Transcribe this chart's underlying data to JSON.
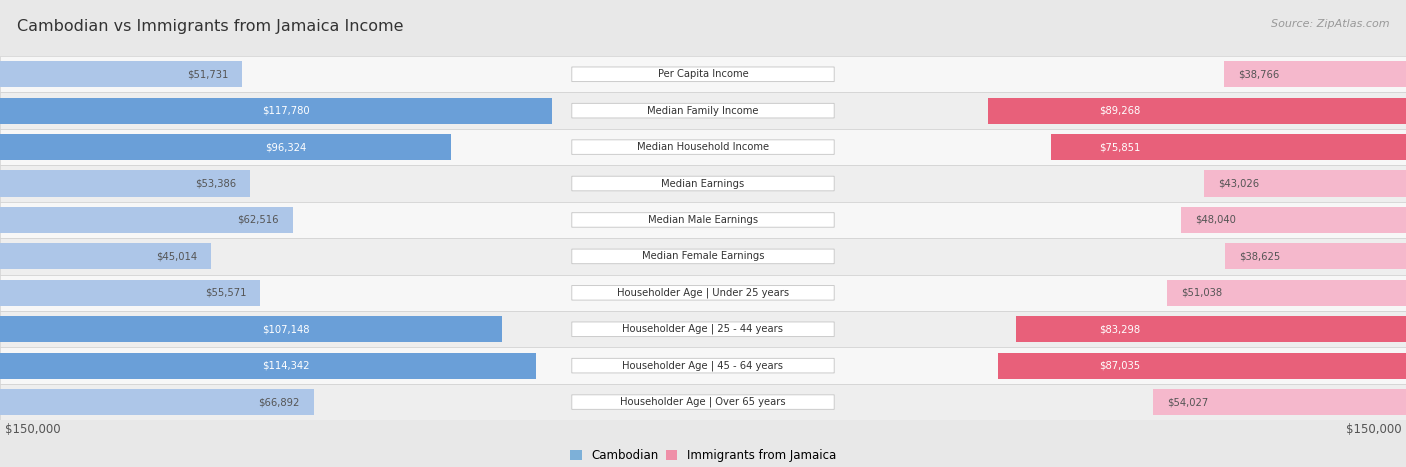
{
  "title": "Cambodian vs Immigrants from Jamaica Income",
  "source": "Source: ZipAtlas.com",
  "max_value": 150000,
  "categories": [
    "Per Capita Income",
    "Median Family Income",
    "Median Household Income",
    "Median Earnings",
    "Median Male Earnings",
    "Median Female Earnings",
    "Householder Age | Under 25 years",
    "Householder Age | 25 - 44 years",
    "Householder Age | 45 - 64 years",
    "Householder Age | Over 65 years"
  ],
  "cambodian_values": [
    51731,
    117780,
    96324,
    53386,
    62516,
    45014,
    55571,
    107148,
    114342,
    66892
  ],
  "jamaica_values": [
    38766,
    89268,
    75851,
    43026,
    48040,
    38625,
    51038,
    83298,
    87035,
    54027
  ],
  "cambodian_color_light": "#adc6e8",
  "cambodian_color_dark": "#6a9fd8",
  "jamaica_color_light": "#f5b8cc",
  "jamaica_color_dark": "#e8607a",
  "bg_color": "#e8e8e8",
  "row_bg_even": "#f7f7f7",
  "row_bg_odd": "#eeeeee",
  "label_bg": "#ffffff",
  "label_border": "#cccccc",
  "text_dark": "#555555",
  "text_white": "#ffffff",
  "axis_label_color": "#555555",
  "title_color": "#333333",
  "source_color": "#999999",
  "legend_cambodian": "#7db0d8",
  "legend_jamaica": "#ef8fa8"
}
